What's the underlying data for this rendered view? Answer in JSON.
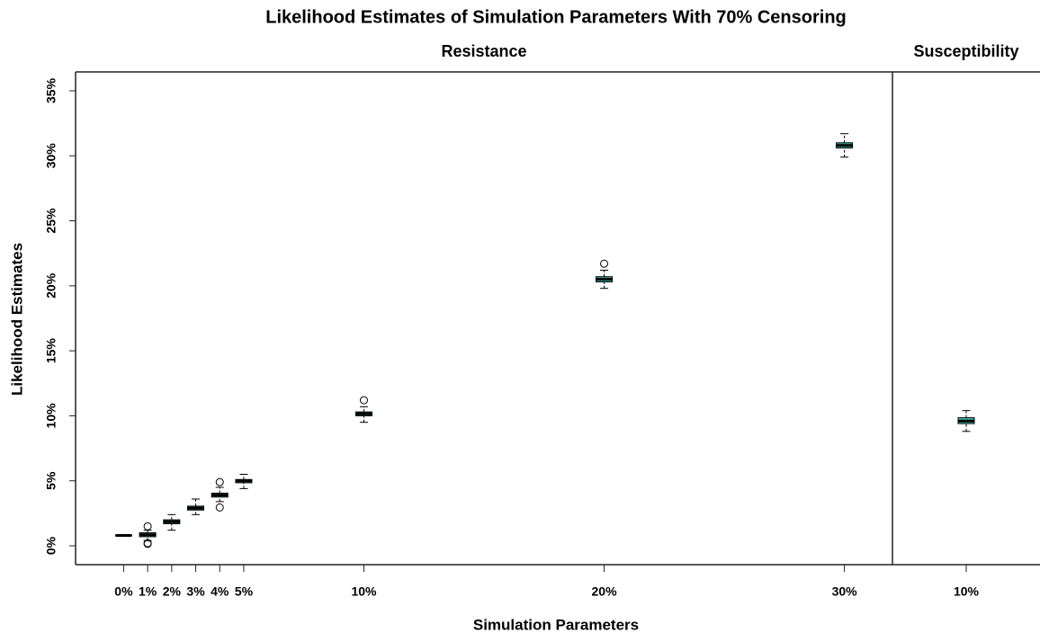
{
  "title": "Likelihood Estimates of Simulation Parameters With 70% Censoring",
  "xlabel": "Simulation Parameters",
  "ylabel": "Likelihood Estimates",
  "chart_data": [
    {
      "type": "box",
      "subtitle": "Resistance",
      "color": "#3dbfae",
      "x": [
        0,
        1,
        2,
        3,
        4,
        5,
        10,
        20,
        30
      ],
      "xlim": [
        -2,
        32
      ],
      "xticks": [
        {
          "value": 0,
          "label": "0%"
        },
        {
          "value": 1,
          "label": "1%"
        },
        {
          "value": 2,
          "label": "2%"
        },
        {
          "value": 3,
          "label": "3%"
        },
        {
          "value": 4,
          "label": "4%"
        },
        {
          "value": 5,
          "label": "5%"
        },
        {
          "value": 10,
          "label": "10%"
        },
        {
          "value": 20,
          "label": "20%"
        },
        {
          "value": 30,
          "label": "30%"
        }
      ],
      "ylim": [
        -1.45,
        36.45
      ],
      "yticks": [
        {
          "value": 0,
          "label": "0%"
        },
        {
          "value": 5,
          "label": "5%"
        },
        {
          "value": 10,
          "label": "10%"
        },
        {
          "value": 15,
          "label": "15%"
        },
        {
          "value": 20,
          "label": "20%"
        },
        {
          "value": 25,
          "label": "25%"
        },
        {
          "value": 30,
          "label": "30%"
        },
        {
          "value": 35,
          "label": "35%"
        }
      ],
      "boxes": [
        {
          "min": 0.8,
          "q1": 0.8,
          "median": 0.8,
          "q3": 0.8,
          "max": 0.8,
          "outliers": []
        },
        {
          "min": 0.4,
          "q1": 0.7,
          "median": 0.85,
          "q3": 1.0,
          "max": 1.2,
          "outliers": [
            0.2,
            0.15,
            1.5
          ]
        },
        {
          "min": 1.2,
          "q1": 1.7,
          "median": 1.85,
          "q3": 2.0,
          "max": 2.4,
          "outliers": []
        },
        {
          "min": 2.4,
          "q1": 2.75,
          "median": 2.9,
          "q3": 3.05,
          "max": 3.6,
          "outliers": []
        },
        {
          "min": 3.4,
          "q1": 3.75,
          "median": 3.9,
          "q3": 4.05,
          "max": 4.5,
          "outliers": [
            4.9,
            2.95
          ]
        },
        {
          "min": 4.4,
          "q1": 4.85,
          "median": 5.0,
          "q3": 5.1,
          "max": 5.5,
          "outliers": []
        },
        {
          "min": 9.5,
          "q1": 10.0,
          "median": 10.15,
          "q3": 10.3,
          "max": 10.7,
          "outliers": [
            11.2
          ]
        },
        {
          "min": 19.8,
          "q1": 20.3,
          "median": 20.5,
          "q3": 20.7,
          "max": 21.2,
          "outliers": [
            21.7
          ]
        },
        {
          "min": 29.9,
          "q1": 30.6,
          "median": 30.8,
          "q3": 31.0,
          "max": 31.7,
          "outliers": []
        }
      ]
    },
    {
      "type": "box",
      "subtitle": "Susceptibility",
      "color": "#3dbfae",
      "x": [
        10
      ],
      "xlim": [
        7,
        13
      ],
      "xticks": [
        {
          "value": 10,
          "label": "10%"
        }
      ],
      "ylim": [
        -1.45,
        36.45
      ],
      "boxes": [
        {
          "min": 8.8,
          "q1": 9.4,
          "median": 9.6,
          "q3": 9.85,
          "max": 10.4,
          "outliers": []
        }
      ]
    }
  ]
}
